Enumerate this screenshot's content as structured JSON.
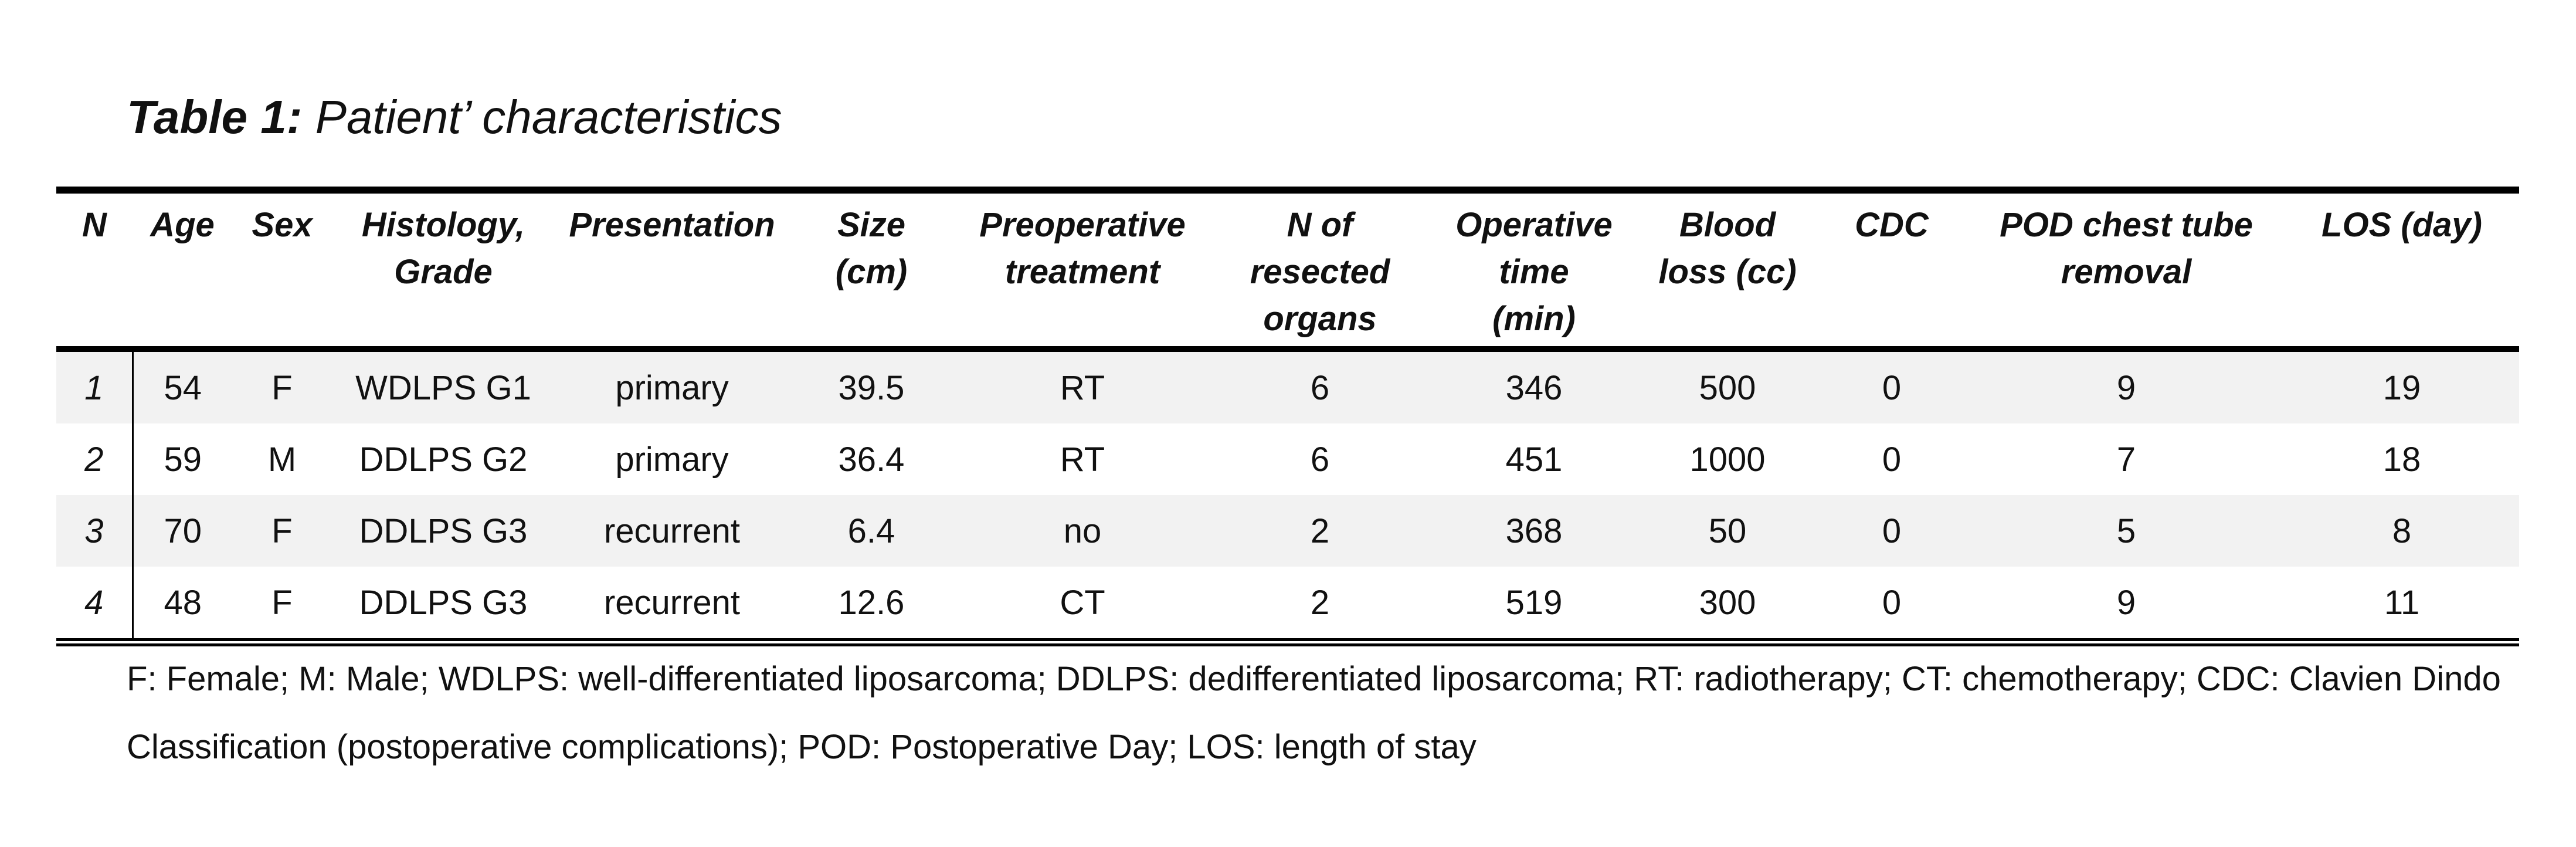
{
  "table_title": {
    "label": "Table 1:",
    "text": "Patient’ characteristics"
  },
  "table": {
    "columns": [
      [
        "N"
      ],
      [
        "Age"
      ],
      [
        "Sex"
      ],
      [
        "Histology,",
        "Grade"
      ],
      [
        "Presentation"
      ],
      [
        "Size",
        "(cm)"
      ],
      [
        "Preoperative",
        "treatment"
      ],
      [
        "N of",
        "resected",
        "organs"
      ],
      [
        "Operative",
        "time",
        "(min)"
      ],
      [
        "Blood",
        "loss (cc)"
      ],
      [
        "CDC"
      ],
      [
        "POD chest tube",
        "removal"
      ],
      [
        "LOS (day)"
      ]
    ],
    "rows": [
      [
        "1",
        "54",
        "F",
        "WDLPS G1",
        "primary",
        "39.5",
        "RT",
        "6",
        "346",
        "500",
        "0",
        "9",
        "19"
      ],
      [
        "2",
        "59",
        "M",
        "DDLPS G2",
        "primary",
        "36.4",
        "RT",
        "6",
        "451",
        "1000",
        "0",
        "7",
        "18"
      ],
      [
        "3",
        "70",
        "F",
        "DDLPS G3",
        "recurrent",
        "6.4",
        "no",
        "2",
        "368",
        "50",
        "0",
        "5",
        "8"
      ],
      [
        "4",
        "48",
        "F",
        "DDLPS G3",
        "recurrent",
        "12.6",
        "CT",
        "2",
        "519",
        "300",
        "0",
        "9",
        "11"
      ]
    ]
  },
  "footnote": "F: Female; M: Male; WDLPS: well-differentiated liposarcoma; DDLPS: dedifferentiated liposarcoma; RT: radiotherapy; CT: chemotherapy; CDC: Clavien Dindo Classification (postoperative complications); POD: Postoperative Day; LOS: length of stay"
}
